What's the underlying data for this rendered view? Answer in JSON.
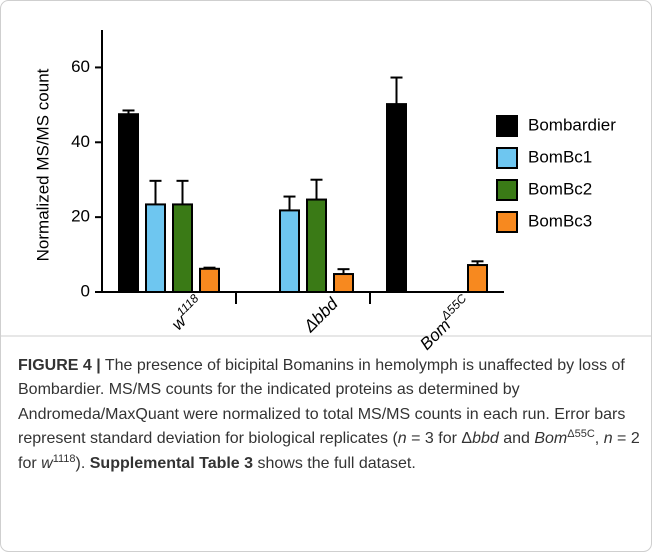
{
  "chart_data": {
    "type": "bar",
    "y_label": "Normalized MS/MS count",
    "categories": [
      {
        "base": "w",
        "sup": "1118"
      },
      {
        "base": "Δbbd",
        "sup": null
      },
      {
        "base": "Bom",
        "sup": "Δ55C"
      }
    ],
    "series": [
      {
        "name": "Bombardier",
        "color": "#000000",
        "values": [
          47.5,
          null,
          50.2
        ],
        "errors": [
          1,
          null,
          7.1
        ]
      },
      {
        "name": "BomBc1",
        "color": "#6ec6f0",
        "values": [
          23.4,
          21.8,
          null
        ],
        "errors": [
          6.3,
          3.7,
          null
        ]
      },
      {
        "name": "BomBc2",
        "color": "#3a7a16",
        "values": [
          23.4,
          24.7,
          null
        ],
        "errors": [
          6.3,
          5.3,
          null
        ]
      },
      {
        "name": "BomBc3",
        "color": "#f7891f",
        "values": [
          6.2,
          4.8,
          7.2
        ],
        "errors": [
          0.3,
          1.3,
          1
        ]
      }
    ],
    "ylim": [
      0,
      70
    ],
    "yticks": [
      0,
      20,
      40,
      60
    ],
    "legend": "right"
  },
  "caption": [
    {
      "text": "FIGURE 4 |",
      "style": "b"
    },
    {
      "text": " The presence of bicipital Bomanins in hemolymph is unaffected by loss of Bombardier. MS/MS counts for the indicated proteins as determined by Andromeda/MaxQuant were normalized to total MS/MS counts in each run. Error bars represent standard deviation for biological replicates (",
      "style": "r"
    },
    {
      "text": "n",
      "style": "i"
    },
    {
      "text": " = 3 for Δ",
      "style": "r"
    },
    {
      "text": "bbd",
      "style": "i"
    },
    {
      "text": " and ",
      "style": "r"
    },
    {
      "text": "Bom",
      "style": "i"
    },
    {
      "text": "Δ55C",
      "style": "sup"
    },
    {
      "text": ", ",
      "style": "r"
    },
    {
      "text": "n",
      "style": "i"
    },
    {
      "text": " = 2 for ",
      "style": "r"
    },
    {
      "text": "w",
      "style": "i"
    },
    {
      "text": "1118",
      "style": "sup"
    },
    {
      "text": "). ",
      "style": "r"
    },
    {
      "text": "Supplemental Table 3",
      "style": "b"
    },
    {
      "text": " shows the full dataset.",
      "style": "r"
    }
  ]
}
